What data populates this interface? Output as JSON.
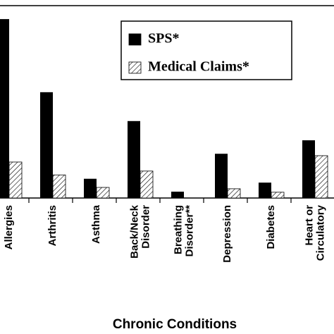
{
  "chart_data": {
    "type": "bar",
    "x_label": "Chronic Conditions",
    "categories": [
      "Allergies",
      "Arthritis",
      "Asthma",
      "Back/Neck\nDisorder",
      "Breathing\nDisorder**",
      "Depression",
      "Diabetes",
      "Heart or\nCirculatory"
    ],
    "series": [
      {
        "name": "SPS*",
        "color": "#000000",
        "hatch": false,
        "values": [
          93,
          55,
          10,
          40,
          3.3,
          23,
          8,
          30
        ]
      },
      {
        "name": "Medical Claims*",
        "color": "#000000",
        "hatch": true,
        "values": [
          18.7,
          12,
          5.5,
          14,
          0,
          4.8,
          3,
          22
        ]
      }
    ],
    "ylim": [
      0,
      100
    ]
  }
}
